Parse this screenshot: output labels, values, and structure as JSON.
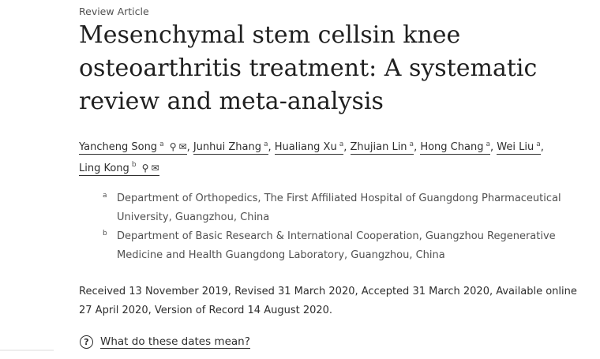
{
  "article_type": "Review Article",
  "title": "Mesenchymal stem cellsin knee osteoarthritis treatment: A systematic review and meta-analysis",
  "authors": [
    {
      "name": "Yancheng Song",
      "aff": "a",
      "icons": [
        "person-icon",
        "mail-icon"
      ]
    },
    {
      "name": "Junhui Zhang",
      "aff": "a"
    },
    {
      "name": "Hualiang Xu",
      "aff": "a"
    },
    {
      "name": "Zhujian Lin",
      "aff": "a"
    },
    {
      "name": "Hong Chang",
      "aff": "a"
    },
    {
      "name": "Wei Liu",
      "aff": "a"
    },
    {
      "name": "Ling Kong",
      "aff": "b",
      "icons": [
        "person-icon",
        "mail-icon"
      ]
    }
  ],
  "affiliations": [
    {
      "label": "a",
      "text": "Department of Orthopedics, The First Affiliated Hospital of Guangdong Pharmaceutical University, Guangzhou, China"
    },
    {
      "label": "b",
      "text": "Department of Basic Research & International Cooperation, Guangzhou Regenerative Medicine and Health Guangdong Laboratory, Guangzhou, China"
    }
  ],
  "dates": "Received 13 November 2019, Revised 31 March 2020, Accepted 31 March 2020, Available online 27 April 2020, Version of Record 14 August 2020.",
  "help_link": "What do these dates mean?"
}
